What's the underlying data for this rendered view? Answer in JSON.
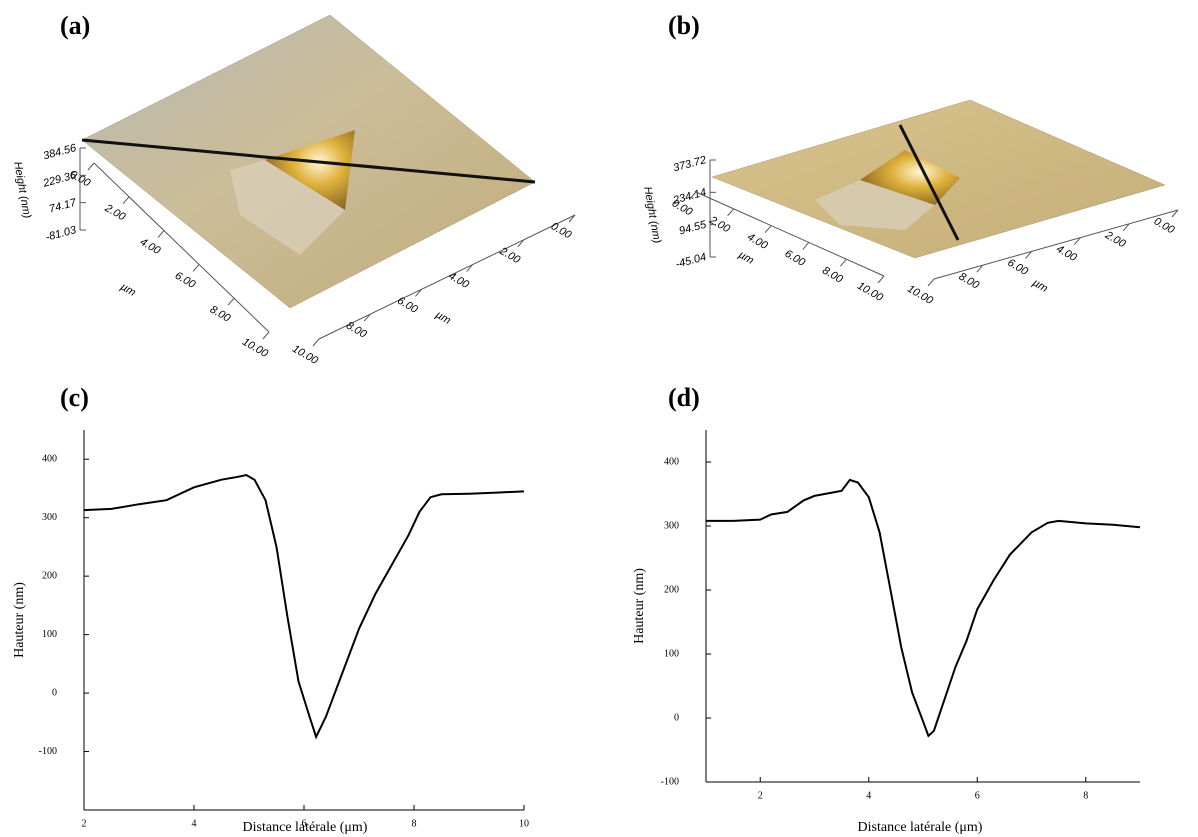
{
  "chart_data": [
    {
      "type": "surface3d",
      "panel": "(a)",
      "z_label": "Height (nm)",
      "x_label": "µm",
      "y_label": "µm",
      "zlim": [
        -81.03,
        384.56
      ],
      "zticks": [
        384.56,
        229.36,
        74.17,
        -81.03
      ],
      "xlim": [
        0,
        10
      ],
      "xticks": [
        {
          "value": 0,
          "label": "0.00"
        },
        {
          "value": 2,
          "label": "2.00"
        },
        {
          "value": 4,
          "label": "4.00"
        },
        {
          "value": 6,
          "label": "6.00"
        },
        {
          "value": 8,
          "label": "8.00"
        },
        {
          "value": 10,
          "label": "10.00"
        }
      ],
      "ylim": [
        0,
        10
      ],
      "yticks": [
        {
          "value": 0,
          "label": "0.00"
        },
        {
          "value": 2,
          "label": "2.00"
        },
        {
          "value": 4,
          "label": "4.00"
        },
        {
          "value": 6,
          "label": "6.00"
        },
        {
          "value": 8,
          "label": "8.00"
        },
        {
          "value": 10,
          "label": "10.00"
        }
      ]
    },
    {
      "type": "surface3d",
      "panel": "(b)",
      "z_label": "Height (nm)",
      "x_label": "µm",
      "y_label": "µm",
      "zlim": [
        -45.04,
        373.72
      ],
      "zticks": [
        373.72,
        234.14,
        94.55,
        -45.04
      ],
      "xlim": [
        0,
        10
      ],
      "xticks": [
        {
          "value": 0,
          "label": "0.00"
        },
        {
          "value": 2,
          "label": "2.00"
        },
        {
          "value": 4,
          "label": "4.00"
        },
        {
          "value": 6,
          "label": "6.00"
        },
        {
          "value": 8,
          "label": "8.00"
        },
        {
          "value": 10,
          "label": "10.00"
        }
      ],
      "ylim": [
        0,
        10
      ],
      "yticks": [
        {
          "value": 0,
          "label": "0.00"
        },
        {
          "value": 2,
          "label": "2.00"
        },
        {
          "value": 4,
          "label": "4.00"
        },
        {
          "value": 6,
          "label": "6.00"
        },
        {
          "value": 8,
          "label": "8.00"
        },
        {
          "value": 10,
          "label": "10.00"
        }
      ]
    },
    {
      "type": "line",
      "panel": "(c)",
      "x_label": "Distance latérale (μm)",
      "y_label": "Hauteur (nm)",
      "color": "#000000",
      "xlim": [
        2,
        10
      ],
      "xticks": [
        2,
        4,
        6,
        8,
        10
      ],
      "ylim": [
        -200,
        450
      ],
      "yticks": [
        -100,
        0,
        100,
        200,
        300,
        400
      ],
      "x": [
        2,
        2.5,
        3,
        3.5,
        4,
        4.5,
        4.8,
        4.95,
        5.1,
        5.3,
        5.5,
        5.7,
        5.9,
        6.1,
        6.22,
        6.4,
        6.6,
        6.8,
        7,
        7.3,
        7.6,
        7.9,
        8.1,
        8.3,
        8.5,
        9,
        9.5,
        10
      ],
      "values": [
        313,
        315,
        323,
        330,
        352,
        365,
        370,
        373,
        365,
        330,
        250,
        130,
        20,
        -40,
        -75,
        -40,
        10,
        60,
        110,
        170,
        220,
        270,
        310,
        335,
        340,
        341,
        343,
        345
      ]
    },
    {
      "type": "line",
      "panel": "(d)",
      "x_label": "Distance latérale (μm)",
      "y_label": "Hauteur (nm)",
      "color": "#000000",
      "xlim": [
        1,
        9
      ],
      "xticks": [
        2,
        4,
        6,
        8
      ],
      "ylim": [
        -100,
        450
      ],
      "yticks": [
        -100,
        0,
        100,
        200,
        300,
        400
      ],
      "x": [
        1,
        1.5,
        2,
        2.2,
        2.5,
        2.8,
        3,
        3.5,
        3.65,
        3.8,
        4,
        4.2,
        4.4,
        4.6,
        4.8,
        5,
        5.1,
        5.2,
        5.4,
        5.6,
        5.8,
        6,
        6.3,
        6.6,
        7,
        7.3,
        7.5,
        8,
        8.5,
        9
      ],
      "values": [
        308,
        308,
        310,
        318,
        322,
        340,
        347,
        355,
        372,
        368,
        345,
        290,
        200,
        110,
        40,
        -5,
        -28,
        -20,
        30,
        80,
        120,
        170,
        215,
        255,
        290,
        305,
        308,
        304,
        302,
        298
      ]
    }
  ]
}
